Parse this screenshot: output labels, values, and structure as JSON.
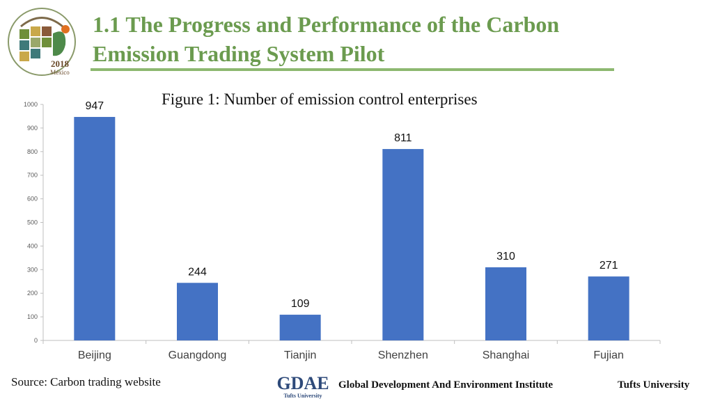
{
  "header": {
    "title_line1": "1.1 The Progress and Performance of the Carbon",
    "title_line2": "Emission Trading System Pilot",
    "logo_year": "2018",
    "logo_place": "México"
  },
  "figure_title": "Figure 1: Number of emission control enterprises",
  "chart_data": {
    "type": "bar",
    "title": "Figure 1: Number of emission control enterprises",
    "categories": [
      "Beijing",
      "Guangdong",
      "Tianjin",
      "Shenzhen",
      "Shanghai",
      "Fujian"
    ],
    "values": [
      947,
      244,
      109,
      811,
      310,
      271
    ],
    "yticks": [
      "0",
      "100",
      "200",
      "300",
      "400",
      "500",
      "600",
      "700",
      "800",
      "900",
      "1000"
    ],
    "ylim": [
      0,
      1000
    ],
    "xlabel": "",
    "ylabel": "",
    "grid": false,
    "bar_color": "#4472c4"
  },
  "footer": {
    "source": "Source: Carbon trading website",
    "gdae_logo_text": "GDAE",
    "gdae_logo_sub": "Tufts University",
    "institute": "Global Development And Environment Institute",
    "university": "Tufts University"
  }
}
